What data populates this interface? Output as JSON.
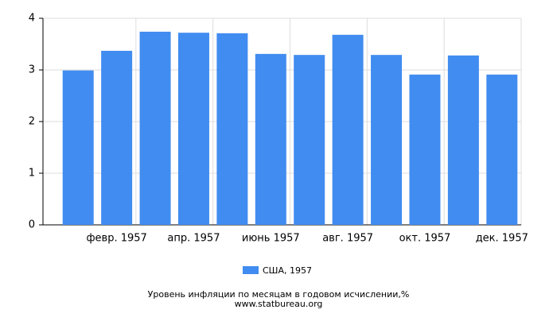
{
  "chart_data": {
    "type": "bar",
    "title": "Уровень инфляции по месяцам в годовом исчислении,%",
    "subtitle": "www.statbureau.org",
    "categories": [
      null,
      "февр. 1957",
      null,
      "апр. 1957",
      null,
      "июнь 1957",
      null,
      "авг. 1957",
      null,
      "окт. 1957",
      null,
      "дек. 1957"
    ],
    "series": [
      {
        "name": "США, 1957",
        "color": "#418cf0",
        "values": [
          2.99,
          3.37,
          3.74,
          3.72,
          3.71,
          3.31,
          3.29,
          3.68,
          3.29,
          2.91,
          3.28,
          2.91
        ]
      }
    ],
    "ylim": [
      0,
      4
    ],
    "yticks": [
      0,
      1,
      2,
      3,
      4
    ],
    "grid": true
  }
}
